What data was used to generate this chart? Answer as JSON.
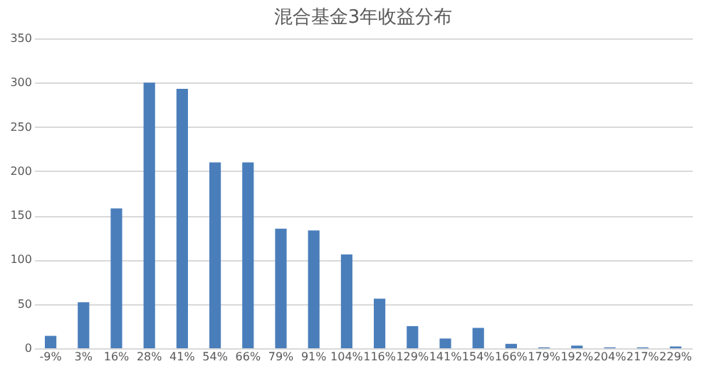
{
  "chart_data": {
    "type": "bar",
    "title": "混合基金3年收益分布",
    "categories": [
      "-9%",
      "3%",
      "16%",
      "28%",
      "41%",
      "54%",
      "66%",
      "79%",
      "91%",
      "104%",
      "116%",
      "129%",
      "141%",
      "154%",
      "166%",
      "179%",
      "192%",
      "204%",
      "217%",
      "229%"
    ],
    "values": [
      14,
      52,
      158,
      300,
      293,
      210,
      210,
      135,
      133,
      106,
      56,
      25,
      11,
      23,
      5,
      1,
      3,
      1,
      1,
      2
    ],
    "color": "#4a7ebb",
    "ylim": [
      0,
      350
    ],
    "yticks": [
      0,
      50,
      100,
      150,
      200,
      250,
      300,
      350
    ],
    "grid": "y"
  }
}
